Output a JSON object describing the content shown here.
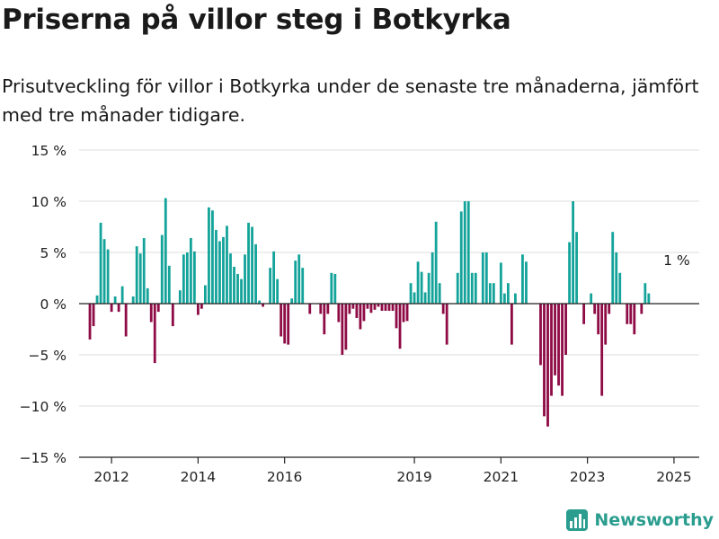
{
  "title": "Priserna på villor steg i Botkyrka",
  "subtitle": "Prisutveckling för villor i Botkyrka under de senaste tre månaderna, jämfört med tre månader tidigare.",
  "brand": "Newsworthy",
  "colors": {
    "positive": "#14a39a",
    "negative": "#8e0b46",
    "grid": "#dddddd",
    "axis": "#222222",
    "brand": "#2a9d8f"
  },
  "chart_data": {
    "type": "bar",
    "x_start": "2011-07",
    "x_step": "month",
    "x_ticks": [
      {
        "date": "2012-01",
        "label": "2012"
      },
      {
        "date": "2014-01",
        "label": "2014"
      },
      {
        "date": "2016-01",
        "label": "2016"
      },
      {
        "date": "2019-01",
        "label": "2019"
      },
      {
        "date": "2021-01",
        "label": "2021"
      },
      {
        "date": "2023-01",
        "label": "2023"
      },
      {
        "date": "2025-01",
        "label": "2025"
      }
    ],
    "y_ticks": [
      {
        "value": 15,
        "label": "15 %"
      },
      {
        "value": 10,
        "label": "10 %"
      },
      {
        "value": 5,
        "label": "5 %"
      },
      {
        "value": 0,
        "label": "0 %"
      },
      {
        "value": -5,
        "label": "−5 %"
      },
      {
        "value": -10,
        "label": "−10 %"
      },
      {
        "value": -15,
        "label": "−15 %"
      }
    ],
    "ylim": [
      -15,
      15
    ],
    "xlim": [
      "2011-04",
      "2025-08"
    ],
    "values": [
      -3.5,
      -2.2,
      0.8,
      7.9,
      6.3,
      5.3,
      -0.8,
      0.7,
      -0.8,
      1.7,
      -3.2,
      0,
      0.7,
      5.6,
      4.9,
      6.4,
      1.5,
      -1.8,
      -5.8,
      -0.8,
      6.7,
      10.3,
      3.7,
      -2.2,
      0,
      1.3,
      4.8,
      5,
      6.4,
      5.1,
      -1.1,
      -0.5,
      1.8,
      9.4,
      9.1,
      7.2,
      6.1,
      6.5,
      7.6,
      4.9,
      3.6,
      2.9,
      2.4,
      4.8,
      7.9,
      7.5,
      5.8,
      0.3,
      -0.3,
      0,
      3.5,
      5.1,
      2.4,
      -3.2,
      -3.9,
      -4,
      0.5,
      4.2,
      4.8,
      3.5,
      0,
      -1,
      0,
      0,
      -1,
      -3,
      -1,
      3,
      2.9,
      -1.8,
      -5,
      -4.5,
      -1,
      -0.5,
      -1.4,
      -2.5,
      -1.7,
      -0.5,
      -0.9,
      -0.6,
      -0.3,
      -0.7,
      -0.7,
      -0.7,
      -0.7,
      -2.4,
      -4.4,
      -1.8,
      -1.7,
      2,
      1.1,
      4.1,
      3.1,
      1.1,
      3,
      5,
      8,
      2,
      -1,
      -4,
      0,
      0,
      3,
      9,
      10,
      10,
      3,
      3,
      0,
      5,
      5,
      2,
      2,
      0,
      4,
      1,
      2,
      -4,
      1,
      0,
      4.8,
      4.1,
      0,
      0,
      0,
      -6,
      -11,
      -12,
      -9,
      -7,
      -8,
      -9,
      -5,
      6,
      10,
      7,
      0,
      -2,
      0,
      1,
      -1,
      -3,
      -9,
      -4,
      -1,
      7,
      5,
      3,
      0,
      -2,
      -2,
      -3,
      0,
      -1,
      2,
      1
    ],
    "annotations": [
      {
        "text": "1 %",
        "date": "2025-02"
      }
    ],
    "grid": true,
    "legend": "none"
  }
}
